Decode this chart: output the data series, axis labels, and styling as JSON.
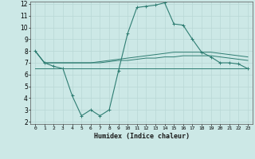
{
  "xlabel": "Humidex (Indice chaleur)",
  "x_values": [
    0,
    1,
    2,
    3,
    4,
    5,
    6,
    7,
    8,
    9,
    10,
    11,
    12,
    13,
    14,
    15,
    16,
    17,
    18,
    19,
    20,
    21,
    22,
    23
  ],
  "line1_y": [
    8.0,
    7.0,
    6.7,
    6.5,
    4.2,
    2.5,
    3.0,
    2.5,
    3.0,
    6.3,
    9.5,
    11.7,
    11.8,
    11.9,
    12.1,
    10.3,
    10.2,
    9.0,
    7.9,
    7.5,
    7.0,
    7.0,
    6.9,
    6.5
  ],
  "line2_y": [
    8.0,
    7.0,
    7.0,
    7.0,
    7.0,
    7.0,
    7.0,
    7.1,
    7.2,
    7.3,
    7.4,
    7.5,
    7.6,
    7.7,
    7.8,
    7.9,
    7.9,
    7.9,
    7.9,
    7.9,
    7.8,
    7.7,
    7.6,
    7.5
  ],
  "line3_y": [
    8.0,
    7.0,
    7.0,
    7.0,
    7.0,
    7.0,
    7.0,
    7.0,
    7.1,
    7.2,
    7.2,
    7.3,
    7.4,
    7.4,
    7.5,
    7.5,
    7.6,
    7.6,
    7.6,
    7.6,
    7.5,
    7.4,
    7.3,
    7.2
  ],
  "line4_y": [
    6.5,
    6.5,
    6.5,
    6.5,
    6.5,
    6.5,
    6.5,
    6.5,
    6.5,
    6.5,
    6.5,
    6.5,
    6.5,
    6.5,
    6.5,
    6.5,
    6.5,
    6.5,
    6.5,
    6.5,
    6.5,
    6.5,
    6.5,
    6.5
  ],
  "color": "#2e7d72",
  "bg_color": "#cce8e6",
  "grid_color": "#b8d8d5",
  "ylim": [
    2,
    12
  ],
  "yticks": [
    2,
    3,
    4,
    5,
    6,
    7,
    8,
    9,
    10,
    11,
    12
  ],
  "xticks": [
    0,
    1,
    2,
    3,
    4,
    5,
    6,
    7,
    8,
    9,
    10,
    11,
    12,
    13,
    14,
    15,
    16,
    17,
    18,
    19,
    20,
    21,
    22,
    23
  ]
}
